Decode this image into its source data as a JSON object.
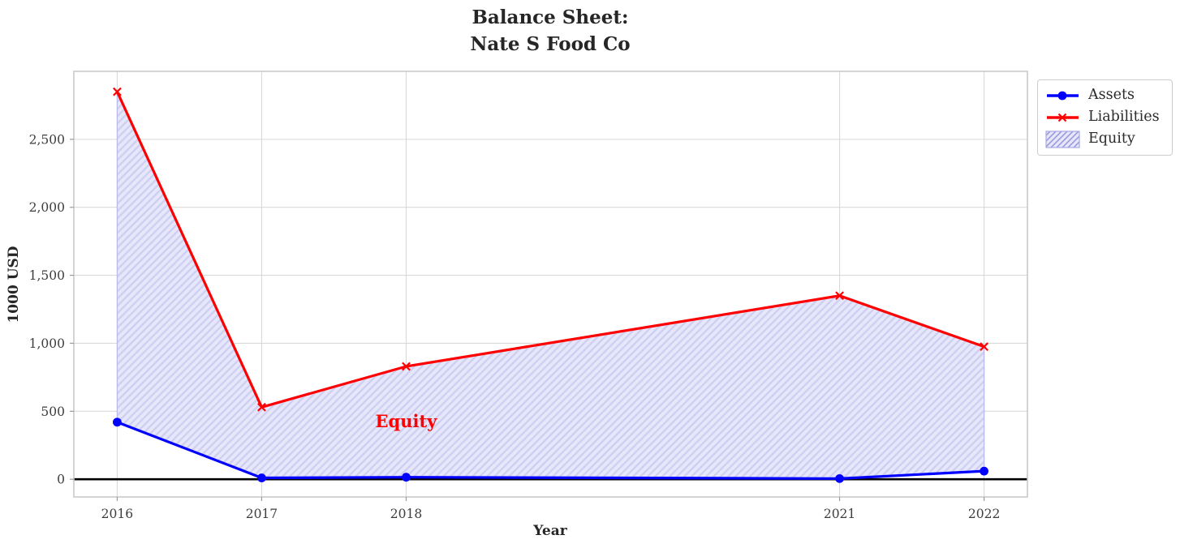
{
  "chart_data": {
    "type": "line",
    "title_lines": [
      "Balance Sheet:",
      "Nate S Food Co"
    ],
    "xlabel": "Year",
    "ylabel": "1000 USD",
    "x": [
      2016,
      2017,
      2018,
      2021,
      2022
    ],
    "x_tick_labels": [
      "2016",
      "2017",
      "2018",
      "2021",
      "2022"
    ],
    "y_ticks": [
      0,
      500,
      1000,
      1500,
      2000,
      2500
    ],
    "y_tick_labels": [
      "0",
      "500",
      "1,000",
      "1,500",
      "2,000",
      "2,500"
    ],
    "xlim": [
      2015.7,
      2022.3
    ],
    "ylim": [
      -130,
      3000
    ],
    "grid": true,
    "series": [
      {
        "name": "Assets",
        "color": "#0000ff",
        "marker": "circle",
        "values": [
          420,
          10,
          15,
          5,
          60
        ]
      },
      {
        "name": "Liabilities",
        "color": "#ff0000",
        "marker": "x",
        "values": [
          2850,
          530,
          830,
          1350,
          975
        ]
      }
    ],
    "fill_between": {
      "name": "Equity",
      "upper_series": "Liabilities",
      "lower_series": "Assets",
      "fill_color": "#e7e7fb",
      "hatch_color": "#cfcff2",
      "edge_color": "#b9b9ec",
      "hatch": "//"
    },
    "annotation": {
      "text": "Equity",
      "x": 2018,
      "y": 425,
      "color": "#ff0000"
    },
    "axhline": {
      "y": 0,
      "color": "#000000"
    },
    "legend_position": "outside-top-right",
    "legend_entries": [
      "Assets",
      "Liabilities",
      "Equity"
    ]
  },
  "style_colors": {
    "grid": "#d9d9d9",
    "spine": "#c9c9c9",
    "tick": "#9a9a9a",
    "tick_label": "#3d3d3d",
    "title": "#262626"
  }
}
